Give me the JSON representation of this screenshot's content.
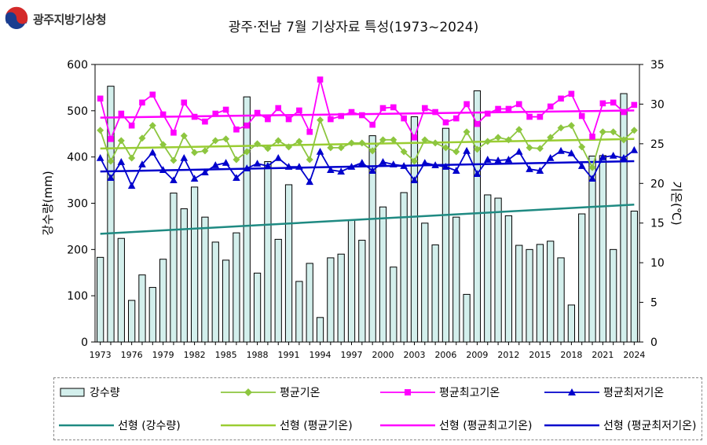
{
  "org": "광주지방기상청",
  "title": "광주·전남 7월 기상자료 특성(1973~2024)",
  "chart_data": {
    "type": "bar",
    "title": "광주·전남 7월 기상자료 특성(1973~2024)",
    "ylabel": "강수량(mm)",
    "y2label": "기온(℃)",
    "ylim": [
      0,
      600
    ],
    "y2lim": [
      0,
      35
    ],
    "yticks": [
      0,
      100,
      200,
      300,
      400,
      500,
      600
    ],
    "y2ticks": [
      0,
      5,
      10,
      15,
      20,
      25,
      30,
      35
    ],
    "xticks": [
      "1973",
      "1976",
      "1979",
      "1982",
      "1985",
      "1988",
      "1991",
      "1994",
      "1997",
      "2000",
      "2003",
      "2006",
      "2009",
      "2012",
      "2015",
      "2018",
      "2021",
      "2024"
    ],
    "years": [
      1973,
      1974,
      1975,
      1976,
      1977,
      1978,
      1979,
      1980,
      1981,
      1982,
      1983,
      1984,
      1985,
      1986,
      1987,
      1988,
      1989,
      1990,
      1991,
      1992,
      1993,
      1994,
      1995,
      1996,
      1997,
      1998,
      1999,
      2000,
      2001,
      2002,
      2003,
      2004,
      2005,
      2006,
      2007,
      2008,
      2009,
      2010,
      2011,
      2012,
      2013,
      2014,
      2015,
      2016,
      2017,
      2018,
      2019,
      2020,
      2021,
      2022,
      2023,
      2024
    ],
    "grid": false,
    "legend_position": "bottom",
    "series": [
      {
        "name": "강수량",
        "kind": "bar",
        "axis": "left",
        "color": "#2e7b76",
        "fill": "#d3efec",
        "values": [
          183,
          553,
          224,
          90,
          145,
          118,
          179,
          322,
          288,
          335,
          270,
          216,
          177,
          236,
          530,
          149,
          390,
          222,
          340,
          131,
          170,
          53,
          182,
          190,
          264,
          220,
          446,
          292,
          162,
          323,
          487,
          257,
          210,
          462,
          270,
          103,
          543,
          318,
          311,
          273,
          209,
          200,
          211,
          218,
          182,
          80,
          277,
          402,
          403,
          200,
          537,
          283
        ]
      },
      {
        "name": "평균기온",
        "kind": "line",
        "axis": "right",
        "color": "#8dc63f",
        "marker": "diamond",
        "values": [
          26.7,
          22.8,
          25.4,
          23.2,
          25.7,
          27.3,
          24.9,
          22.9,
          26.0,
          23.9,
          24.1,
          25.4,
          25.6,
          23.0,
          24.0,
          25.0,
          24.4,
          25.4,
          24.6,
          25.3,
          23.0,
          28.0,
          24.5,
          24.5,
          25.1,
          25.1,
          24.1,
          25.5,
          25.5,
          24.0,
          22.8,
          25.5,
          25.1,
          24.5,
          24.0,
          26.5,
          24.3,
          25.3,
          25.8,
          25.5,
          26.8,
          24.5,
          24.4,
          25.8,
          27.0,
          27.3,
          24.6,
          22.0,
          26.5,
          26.5,
          25.5,
          26.7
        ]
      },
      {
        "name": "평균최고기온",
        "kind": "line",
        "axis": "right",
        "color": "#ff00ff",
        "marker": "square",
        "values": [
          30.7,
          25.6,
          28.8,
          27.3,
          30.2,
          31.2,
          28.7,
          26.4,
          30.2,
          28.4,
          27.8,
          28.8,
          29.3,
          26.8,
          27.3,
          28.9,
          28.1,
          29.5,
          28.1,
          29.2,
          26.5,
          33.1,
          28.1,
          28.5,
          29.0,
          28.6,
          27.4,
          29.5,
          29.6,
          28.2,
          25.8,
          29.5,
          29.0,
          27.7,
          28.2,
          30.0,
          27.5,
          28.8,
          29.4,
          29.4,
          30.0,
          28.4,
          28.4,
          29.7,
          30.7,
          31.3,
          28.5,
          25.9,
          30.1,
          30.2,
          29.0,
          29.9
        ]
      },
      {
        "name": "평균최저기온",
        "kind": "line",
        "axis": "right",
        "color": "#0000cc",
        "marker": "triangle",
        "values": [
          23.2,
          20.7,
          22.7,
          19.7,
          22.4,
          23.9,
          21.7,
          20.4,
          23.2,
          20.6,
          21.4,
          22.3,
          22.6,
          20.7,
          21.9,
          22.5,
          22.2,
          23.2,
          22.1,
          22.1,
          20.2,
          24.0,
          21.7,
          21.5,
          22.1,
          22.6,
          21.6,
          22.7,
          22.4,
          22.2,
          20.4,
          22.6,
          22.3,
          22.1,
          21.6,
          24.1,
          21.2,
          23.0,
          22.9,
          23.0,
          24.0,
          21.8,
          21.6,
          23.2,
          24.1,
          23.8,
          22.2,
          20.6,
          23.3,
          23.5,
          23.2,
          24.2
        ]
      },
      {
        "name": "선형 (강수량)",
        "kind": "trend",
        "axis": "left",
        "color": "#1f8a82",
        "values": [
          234,
          297
        ]
      },
      {
        "name": "선형 (평균기온)",
        "kind": "trend",
        "axis": "right",
        "color": "#9acd32",
        "values": [
          24.4,
          25.6
        ]
      },
      {
        "name": "선형 (평균최고기온)",
        "kind": "trend",
        "axis": "right",
        "color": "#ff00ff",
        "values": [
          28.3,
          29.2
        ]
      },
      {
        "name": "선형 (평균최저기온)",
        "kind": "trend",
        "axis": "right",
        "color": "#0000cc",
        "values": [
          21.5,
          22.8
        ]
      }
    ]
  }
}
